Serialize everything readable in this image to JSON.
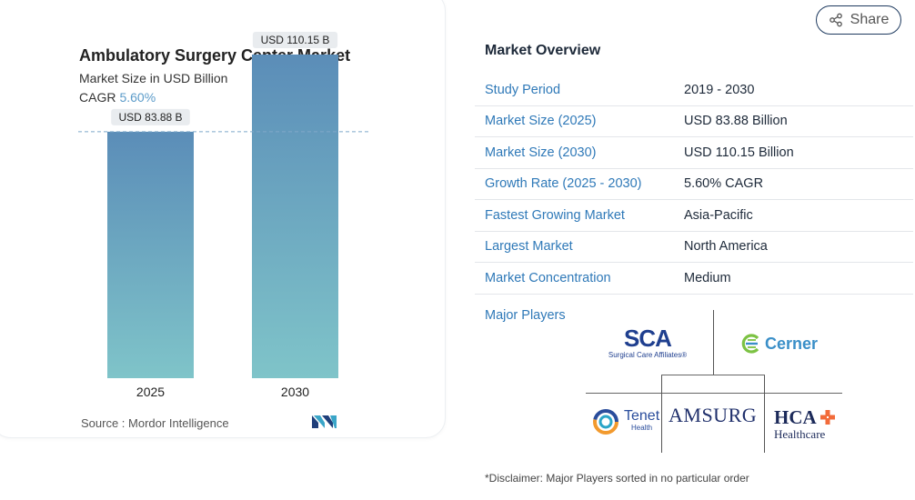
{
  "share": {
    "label": "Share",
    "icon": "share-icon"
  },
  "chart_data": {
    "type": "bar",
    "title": "Ambulatory Surgery Center Market",
    "subtitle": "Market Size in USD Billion",
    "cagr_label": "CAGR",
    "cagr_value": "5.60%",
    "categories": [
      "2025",
      "2030"
    ],
    "values": [
      83.88,
      110.15
    ],
    "data_labels": [
      "USD 83.88 B",
      "USD 110.15 B"
    ],
    "ylim": [
      0,
      125
    ],
    "reference_line": 83.88,
    "bar_colors": {
      "top": "#5b8db8",
      "bottom": "#7fc4c9"
    }
  },
  "source": {
    "label": "Source :",
    "text": "Mordor Intelligence",
    "logo_icon": "mordor-intelligence-logo"
  },
  "overview": {
    "title": "Market Overview",
    "rows": [
      {
        "label": "Study Period",
        "value": "2019 - 2030"
      },
      {
        "label": "Market Size (2025)",
        "value": "USD 83.88 Billion"
      },
      {
        "label": "Market Size (2030)",
        "value": "USD 110.15 Billion"
      },
      {
        "label": "Growth Rate (2025 - 2030)",
        "value": "5.60% CAGR"
      },
      {
        "label": "Fastest Growing Market",
        "value": "Asia-Pacific"
      },
      {
        "label": "Largest Market",
        "value": "North America"
      },
      {
        "label": "Market Concentration",
        "value": "Medium"
      }
    ]
  },
  "players": {
    "label": "Major Players",
    "logos": {
      "sca_mark": "SCA",
      "sca_sub": "Surgical Care Affiliates®",
      "cerner": "Cerner",
      "tenet": "Tenet",
      "tenet_sub": "Health",
      "amsurg": "AMSURG",
      "hca": "HCA",
      "hca_sub": "Healthcare"
    }
  },
  "disclaimer": "*Disclaimer: Major Players sorted in no particular order",
  "colors": {
    "accent": "#2f79b8",
    "title": "#1d2939",
    "cagr": "#5b9bc9"
  }
}
